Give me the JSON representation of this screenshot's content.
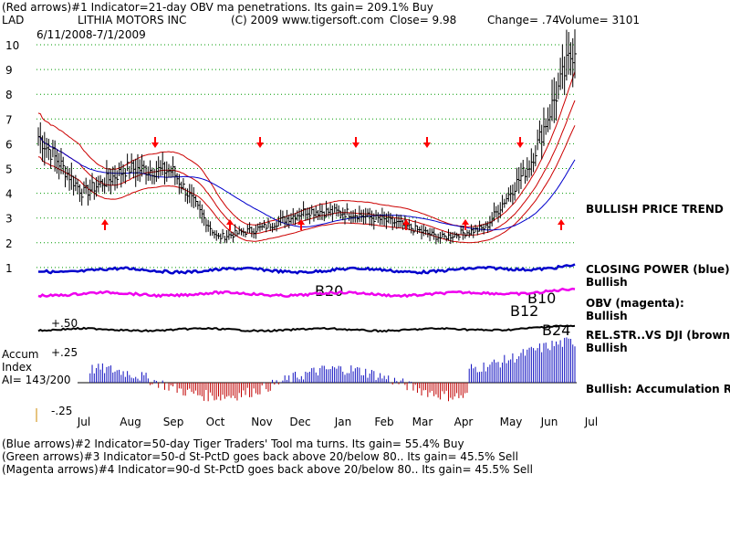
{
  "header": {
    "line1": "(Red arrows)#1 Indicator=21-day OBV ma penetrations. Its gain= 209.1% Buy",
    "ticker": "LAD",
    "company": "LITHIA MOTORS INC",
    "copyright": "(C) 2009 www.tigersoft.com",
    "close": "Close=  9.98",
    "change": "Change= .74",
    "volume": "Volume= 3101",
    "date_range": "6/11/2008-7/1/2009"
  },
  "right_labels": {
    "price_trend": "BULLISH PRICE TREND",
    "closing_power_title": "CLOSING POWER (blue):",
    "closing_power_status": "Bullish",
    "obv_title": "OBV (magenta):",
    "obv_status": "Bullish",
    "relstr_title": "REL.STR..VS DJI (brown):",
    "relstr_status": "Bullish",
    "accum_status": "Bullish: Accumulation Rising"
  },
  "left_labels": {
    "accum_line1": "Accum",
    "accum_line2": "Index",
    "ai": "AI= 143/200",
    "relstr_level": "+.50",
    "accum_plus": "+.25",
    "accum_minus": "-.25"
  },
  "annotations": {
    "b20": "B20",
    "b10": "B10",
    "b12": "B12",
    "b24": "B24"
  },
  "footer": {
    "line1": "(Blue arrows)#2 Indicator=50-day Tiger Traders' Tool ma turns. Its gain= 55.4% Buy",
    "line2": "(Green arrows)#3 Indicator=50-d St-PctD goes back above 20/below 80.. Its gain= 45.5% Sell",
    "line3": "(Magenta arrows)#4 Indicator=90-d St-PctD goes back above 20/below 80.. Its gain= 45.5% Sell"
  },
  "colors": {
    "price_bars": "#000000",
    "bands": "#cc0000",
    "ma_blue": "#0000cc",
    "closing_power": "#0000cc",
    "obv": "#ee00ee",
    "relstr": "#000000",
    "accum_pos": "#1010c0",
    "accum_neg": "#c00000",
    "grid": "#009900",
    "arrows": "#ff0000"
  },
  "chart_data": {
    "type": "line",
    "title": "",
    "y_axis_ticks": [
      1,
      2,
      3,
      4,
      5,
      6,
      7,
      8,
      9,
      10
    ],
    "ylim": [
      1,
      10
    ],
    "x_month_labels": [
      "Jul",
      "Aug",
      "Sep",
      "Oct",
      "Nov",
      "Dec",
      "Jan",
      "Feb",
      "Mar",
      "Apr",
      "May",
      "Jun",
      "Jul"
    ],
    "months": [
      "Jun",
      "Jul",
      "Aug",
      "Sep",
      "Oct",
      "Nov",
      "Dec",
      "Jan",
      "Feb",
      "Mar",
      "Apr",
      "May",
      "Jun"
    ],
    "price_monthly_close_approx": [
      6.3,
      4.0,
      5.0,
      4.9,
      2.2,
      2.6,
      3.3,
      3.2,
      2.8,
      2.2,
      2.6,
      5.2,
      9.98
    ],
    "series": [
      {
        "name": "CLOSING POWER (blue)",
        "status": "Bullish"
      },
      {
        "name": "OBV (magenta)",
        "status": "Bullish"
      },
      {
        "name": "REL.STR..VS DJI (brown)",
        "status": "Bullish"
      }
    ],
    "accum_axis_ticks": [
      "+.25",
      "-.25"
    ],
    "grid": true
  }
}
